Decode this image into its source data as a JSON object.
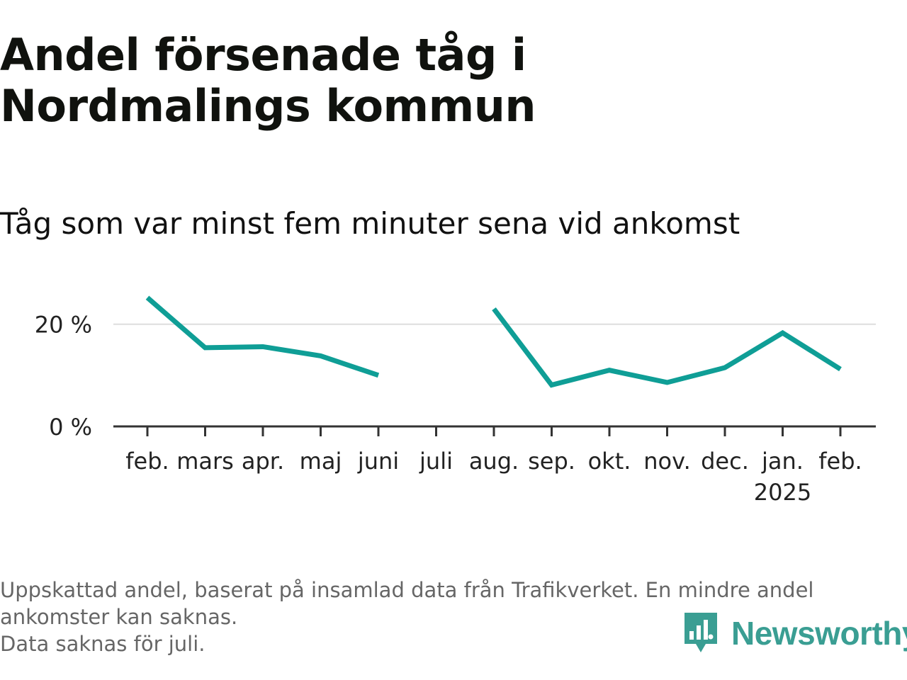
{
  "header": {
    "title": "Andel försenade tåg i Nordmalings kommun",
    "subtitle": "Tåg som var minst fem minuter sena vid ankomst"
  },
  "chart_data": {
    "type": "line",
    "categories": [
      "feb.",
      "mars",
      "apr.",
      "maj",
      "juni",
      "juli",
      "aug.",
      "sep.",
      "okt.",
      "nov.",
      "dec.",
      "jan.",
      "feb."
    ],
    "category_sublabels": [
      "",
      "",
      "",
      "",
      "",
      "",
      "",
      "",
      "",
      "",
      "",
      "2025",
      ""
    ],
    "series": [
      {
        "values": [
          25.2,
          15.4,
          15.6,
          13.8,
          10.0,
          null,
          23.0,
          8.1,
          11.0,
          8.6,
          11.5,
          18.3,
          11.2
        ]
      }
    ],
    "ylim": [
      0,
      28
    ],
    "yticks": [
      0,
      20
    ],
    "ytick_labels": [
      "0 %",
      "20 %"
    ],
    "grid": true,
    "line_color": "#0f9e96",
    "xlabel": "",
    "ylabel": ""
  },
  "footnote": {
    "line1": "Uppskattad andel, baserat på insamlad data från Trafikverket. En mindre andel",
    "line2": "ankomster kan saknas.",
    "line3": "Data saknas för juli."
  },
  "brand": {
    "name": "Newsworthy",
    "logo_icon": "bar-chart-speech-bubble-icon",
    "color": "#3a9e93"
  }
}
